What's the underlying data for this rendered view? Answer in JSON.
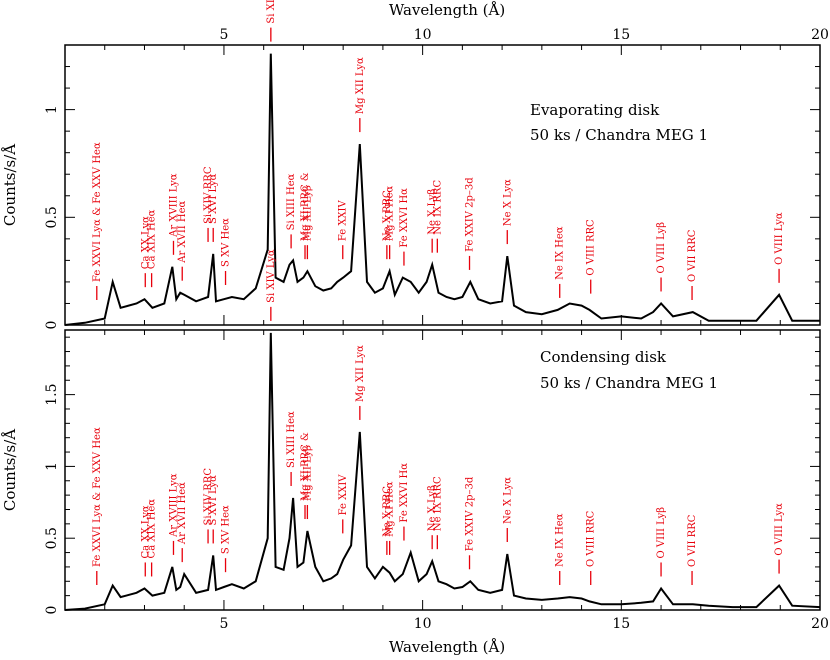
{
  "chart_data": [
    {
      "type": "line",
      "panel": "top",
      "annotation": [
        "Evaporating disk",
        "50 ks / Chandra MEG 1"
      ],
      "xlabel": "Wavelength (Å)",
      "ylabel": "Counts/s/Å",
      "xlim": [
        1.0,
        20.0
      ],
      "ylim": [
        0.0,
        1.3
      ],
      "x_ticks": [
        5,
        10,
        15,
        20
      ],
      "y_ticks": [
        0,
        0.5,
        1
      ],
      "series": [
        {
          "x": [
            1.0,
            1.5,
            2.0,
            2.2,
            2.4,
            2.8,
            3.0,
            3.2,
            3.5,
            3.7,
            3.8,
            3.9,
            4.0,
            4.3,
            4.6,
            4.73,
            4.8,
            5.0,
            5.2,
            5.5,
            5.8,
            6.1,
            6.18,
            6.3,
            6.5,
            6.65,
            6.74,
            6.85,
            7.0,
            7.1,
            7.3,
            7.5,
            7.7,
            7.85,
            8.0,
            8.2,
            8.42,
            8.6,
            8.8,
            9.0,
            9.17,
            9.3,
            9.5,
            9.7,
            9.9,
            10.1,
            10.24,
            10.4,
            10.6,
            10.8,
            11.0,
            11.2,
            11.4,
            11.7,
            12.0,
            12.13,
            12.3,
            12.6,
            13.0,
            13.4,
            13.7,
            14.0,
            14.2,
            14.5,
            15.0,
            15.5,
            15.8,
            16.0,
            16.3,
            16.8,
            17.2,
            17.8,
            18.4,
            18.97,
            19.3,
            20.0
          ],
          "y": [
            0.0,
            0.01,
            0.03,
            0.2,
            0.08,
            0.1,
            0.12,
            0.08,
            0.1,
            0.27,
            0.12,
            0.15,
            0.14,
            0.11,
            0.13,
            0.33,
            0.11,
            0.12,
            0.13,
            0.12,
            0.17,
            0.35,
            1.26,
            0.22,
            0.2,
            0.28,
            0.3,
            0.2,
            0.22,
            0.25,
            0.18,
            0.16,
            0.17,
            0.2,
            0.22,
            0.25,
            0.84,
            0.2,
            0.15,
            0.17,
            0.25,
            0.14,
            0.22,
            0.2,
            0.15,
            0.2,
            0.28,
            0.15,
            0.13,
            0.12,
            0.13,
            0.2,
            0.12,
            0.1,
            0.11,
            0.32,
            0.09,
            0.06,
            0.05,
            0.07,
            0.1,
            0.09,
            0.07,
            0.03,
            0.04,
            0.03,
            0.06,
            0.1,
            0.04,
            0.06,
            0.02,
            0.02,
            0.02,
            0.14,
            0.02,
            0.02
          ]
        }
      ]
    },
    {
      "type": "line",
      "panel": "bottom",
      "annotation": [
        "Condensing disk",
        "50 ks / Chandra MEG 1"
      ],
      "xlabel": "Wavelength (Å)",
      "ylabel": "Counts/s/Å",
      "xlim": [
        1.0,
        20.0
      ],
      "ylim": [
        0.0,
        1.95
      ],
      "x_ticks": [
        5,
        10,
        15,
        20
      ],
      "y_ticks": [
        0,
        0.5,
        1,
        1.5
      ],
      "series": [
        {
          "x": [
            1.0,
            1.5,
            2.0,
            2.2,
            2.4,
            2.8,
            3.0,
            3.2,
            3.5,
            3.7,
            3.8,
            3.9,
            4.0,
            4.3,
            4.6,
            4.73,
            4.8,
            5.0,
            5.2,
            5.5,
            5.8,
            6.1,
            6.18,
            6.3,
            6.5,
            6.65,
            6.74,
            6.85,
            7.0,
            7.1,
            7.3,
            7.5,
            7.7,
            7.85,
            8.0,
            8.2,
            8.42,
            8.6,
            8.8,
            9.0,
            9.17,
            9.3,
            9.5,
            9.7,
            9.9,
            10.1,
            10.24,
            10.4,
            10.6,
            10.8,
            11.0,
            11.2,
            11.4,
            11.7,
            12.0,
            12.13,
            12.3,
            12.6,
            13.0,
            13.4,
            13.7,
            14.0,
            14.2,
            14.5,
            15.0,
            15.5,
            15.8,
            16.0,
            16.3,
            16.8,
            17.2,
            17.8,
            18.4,
            18.97,
            19.3,
            20.0
          ],
          "y": [
            0.0,
            0.01,
            0.04,
            0.17,
            0.09,
            0.12,
            0.15,
            0.1,
            0.12,
            0.3,
            0.14,
            0.16,
            0.25,
            0.12,
            0.14,
            0.38,
            0.14,
            0.16,
            0.18,
            0.15,
            0.2,
            0.5,
            1.93,
            0.3,
            0.28,
            0.5,
            0.78,
            0.3,
            0.33,
            0.55,
            0.3,
            0.2,
            0.22,
            0.25,
            0.35,
            0.45,
            1.24,
            0.3,
            0.22,
            0.3,
            0.26,
            0.2,
            0.25,
            0.4,
            0.2,
            0.25,
            0.34,
            0.2,
            0.18,
            0.15,
            0.16,
            0.2,
            0.14,
            0.12,
            0.14,
            0.39,
            0.1,
            0.08,
            0.07,
            0.08,
            0.09,
            0.08,
            0.06,
            0.04,
            0.04,
            0.05,
            0.06,
            0.15,
            0.04,
            0.04,
            0.03,
            0.02,
            0.02,
            0.17,
            0.03,
            0.02
          ]
        }
      ]
    }
  ],
  "line_ids": [
    {
      "text": "Fe XXVI Lyα & Fe XXV Heα",
      "x": 1.8
    },
    {
      "text": "Ca XX Lyα",
      "x": 3.02
    },
    {
      "text": "Ca XIX Heα",
      "x": 3.18
    },
    {
      "text": "Ar XVIII Lyα",
      "x": 3.73
    },
    {
      "text": "Ar XVII Heα",
      "x": 3.95
    },
    {
      "text": "Si XIV RRC",
      "x": 4.6
    },
    {
      "text": "S XVI Lyα",
      "x": 4.73
    },
    {
      "text": "S XV Heα",
      "x": 5.04
    },
    {
      "text": "Si XIV Lyα",
      "x": 6.18
    },
    {
      "text": "Si XIII Heα",
      "x": 6.69
    },
    {
      "text": "Mg XI RRC &",
      "x": 7.04
    },
    {
      "text": "Mg XII Lyβ",
      "x": 7.1
    },
    {
      "text": "Fe XXIV",
      "x": 7.99
    },
    {
      "text": "Mg XII Lyα",
      "x": 8.42
    },
    {
      "text": "Ne X RRC",
      "x": 9.1
    },
    {
      "text": "Mg XI Heα",
      "x": 9.17
    },
    {
      "text": "Fe XXVI Hα",
      "x": 9.53
    },
    {
      "text": "Ne X Lyβ",
      "x": 10.24
    },
    {
      "text": "Ne IX RRC",
      "x": 10.37
    },
    {
      "text": "Fe XXIV 2p–3d",
      "x": 11.18
    },
    {
      "text": "Ne X Lyα",
      "x": 12.13
    },
    {
      "text": "Ne IX Heα",
      "x": 13.45
    },
    {
      "text": "O VIII RRC",
      "x": 14.23
    },
    {
      "text": "O VIII Lyβ",
      "x": 16.0
    },
    {
      "text": "O VII RRC",
      "x": 16.78
    },
    {
      "text": "O VIII Lyα",
      "x": 18.97
    }
  ],
  "colors": {
    "line_ids": "#e8000b",
    "spectrum": "#000000"
  }
}
